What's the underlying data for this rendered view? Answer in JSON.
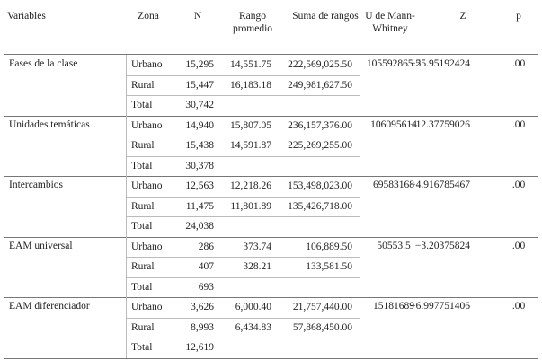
{
  "table": {
    "header": [
      "Variables",
      "Zona",
      "N",
      "Rango promedio",
      "Suma de rangos",
      "U de Mann-Whitney",
      "Z",
      "p"
    ],
    "groups": [
      {
        "variable": "Fases de la clase",
        "rows": [
          [
            "Urbano",
            "15,295",
            "14,551.75",
            "222,569,025.50"
          ],
          [
            "Rural",
            "15,447",
            "16,183.18",
            "249,981,627.50"
          ],
          [
            "Total",
            "30,742"
          ]
        ],
        "u": "105592865.5",
        "z": "−25.95192424",
        "p": ".00"
      },
      {
        "variable": "Unidades temáticas",
        "rows": [
          [
            "Urbano",
            "14,940",
            "15,807.05",
            "236,157,376.00"
          ],
          [
            "Rural",
            "15,438",
            "14,591.87",
            "225,269,255.00"
          ],
          [
            "Total",
            "30,378"
          ]
        ],
        "u": "106095614",
        "z": "−12.37759026",
        "p": ".00"
      },
      {
        "variable": "Intercambios",
        "rows": [
          [
            "Urbano",
            "12,563",
            "12,218.26",
            "153,498,023.00"
          ],
          [
            "Rural",
            "11,475",
            "11,801.89",
            "135,426,718.00"
          ],
          [
            "Total",
            "24,038"
          ]
        ],
        "u": "69583168",
        "z": "−4.916785467",
        "p": ".00"
      },
      {
        "variable": "EAM universal",
        "rows": [
          [
            "Urbano",
            "286",
            "373.74",
            "106,889.50"
          ],
          [
            "Rural",
            "407",
            "328.21",
            "133,581.50"
          ],
          [
            "Total",
            "693"
          ]
        ],
        "u": "50553.5",
        "z": "−3.20375824",
        "p": ".00"
      },
      {
        "variable": "EAM diferenciador",
        "rows": [
          [
            "Urbano",
            "3,626",
            "6,000.40",
            "21,757,440.00"
          ],
          [
            "Rural",
            "8,993",
            "6,434.83",
            "57,868,450.00"
          ],
          [
            "Total",
            "12,619"
          ]
        ],
        "u": "15181689",
        "z": "−6.997751406",
        "p": ".00"
      }
    ]
  }
}
